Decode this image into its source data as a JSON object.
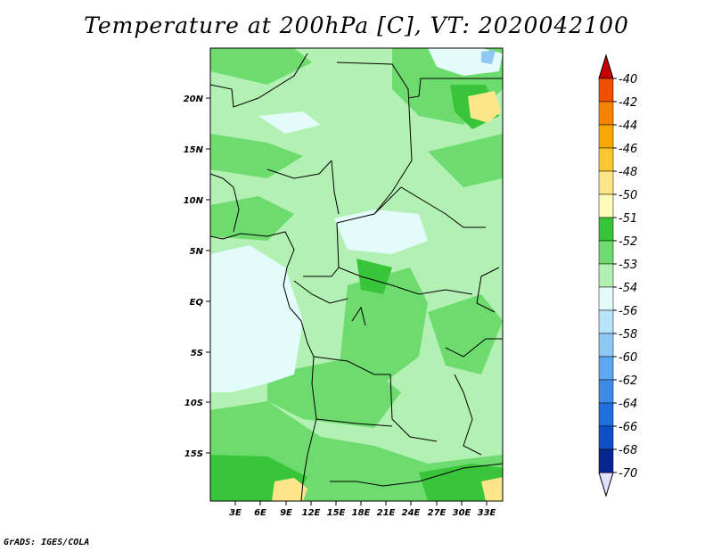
{
  "title": "Temperature at 200hPa [C], VT: 2020042100",
  "credit": "GrADS: IGES/COLA",
  "map": {
    "lat_labels": [
      "20N",
      "15N",
      "10N",
      "5N",
      "EQ",
      "5S",
      "10S",
      "15S"
    ],
    "lon_labels": [
      "3E",
      "6E",
      "9E",
      "12E",
      "15E",
      "18E",
      "21E",
      "24E",
      "27E",
      "30E",
      "33E"
    ]
  },
  "colorbar": {
    "labels": [
      "-40",
      "-42",
      "-44",
      "-46",
      "-48",
      "-50",
      "-51",
      "-52",
      "-53",
      "-54",
      "-56",
      "-58",
      "-60",
      "-62",
      "-64",
      "-66",
      "-68",
      "-70"
    ],
    "colors": [
      "#e01e00",
      "#f04e00",
      "#f58200",
      "#f7a800",
      "#f9c830",
      "#fde68a",
      "#fefcb8",
      "#39c539",
      "#6ddb6d",
      "#b3f0b3",
      "#e3fbfb",
      "#b8e4fb",
      "#8ec8f5",
      "#5ea8ef",
      "#3c8ce6",
      "#1f6edc",
      "#0f4fc8",
      "#08268f"
    ],
    "top_arrow_color": "#c80000",
    "bottom_arrow_color": "#e0e0ff"
  }
}
